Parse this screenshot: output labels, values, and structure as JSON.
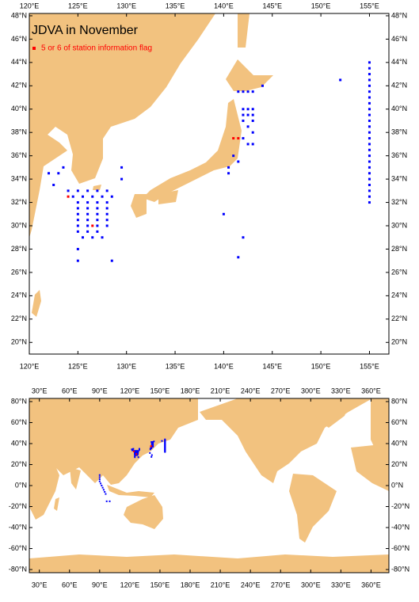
{
  "title": "JDVA in November",
  "legend": "5 or 6 of station information flag",
  "maps": [
    {
      "xlim": [
        120,
        157
      ],
      "ylim": [
        19,
        48.2
      ],
      "xticks": [
        {
          "value": 120,
          "label": "120°E"
        },
        {
          "value": 125,
          "label": "125°E"
        },
        {
          "value": 130,
          "label": "130°E"
        },
        {
          "value": 135,
          "label": "135°E"
        },
        {
          "value": 140,
          "label": "140°E"
        },
        {
          "value": 145,
          "label": "145°E"
        },
        {
          "value": 150,
          "label": "150°E"
        },
        {
          "value": 155,
          "label": "155°E"
        }
      ],
      "yticks": [
        {
          "value": 20,
          "label": "20°N"
        },
        {
          "value": 22,
          "label": "22°N"
        },
        {
          "value": 24,
          "label": "24°N"
        },
        {
          "value": 26,
          "label": "26°N"
        },
        {
          "value": 28,
          "label": "28°N"
        },
        {
          "value": 30,
          "label": "30°N"
        },
        {
          "value": 32,
          "label": "32°N"
        },
        {
          "value": 34,
          "label": "34°N"
        },
        {
          "value": 36,
          "label": "36°N"
        },
        {
          "value": 38,
          "label": "38°N"
        },
        {
          "value": 40,
          "label": "40°N"
        },
        {
          "value": 42,
          "label": "42°N"
        },
        {
          "value": 44,
          "label": "44°N"
        },
        {
          "value": 46,
          "label": "46°N"
        },
        {
          "value": 48,
          "label": "48°N"
        }
      ]
    },
    {
      "xlim": [
        20,
        377.8
      ],
      "ylim": [
        -83,
        83
      ],
      "xticks": [
        {
          "value": 30,
          "label": "30°E"
        },
        {
          "value": 60,
          "label": "60°E"
        },
        {
          "value": 90,
          "label": "90°E"
        },
        {
          "value": 120,
          "label": "120°E"
        },
        {
          "value": 150,
          "label": "150°E"
        },
        {
          "value": 180,
          "label": "180°E"
        },
        {
          "value": 210,
          "label": "210°E"
        },
        {
          "value": 240,
          "label": "240°E"
        },
        {
          "value": 270,
          "label": "270°E"
        },
        {
          "value": 300,
          "label": "300°E"
        },
        {
          "value": 330,
          "label": "330°E"
        },
        {
          "value": 360,
          "label": "360°E"
        }
      ],
      "yticks": [
        {
          "value": -80,
          "label": "-80°N"
        },
        {
          "value": -60,
          "label": "-60°N"
        },
        {
          "value": -40,
          "label": "-40°N"
        },
        {
          "value": -20,
          "label": "-20°N"
        },
        {
          "value": 0,
          "label": "0°N"
        },
        {
          "value": 20,
          "label": "20°N"
        },
        {
          "value": 40,
          "label": "40°N"
        },
        {
          "value": 60,
          "label": "60°N"
        },
        {
          "value": 80,
          "label": "80°N"
        }
      ]
    }
  ],
  "station_color": "#0000ff",
  "flag_color": "#ff0000",
  "stations": [
    [
      124,
      33
    ],
    [
      125,
      33
    ],
    [
      126,
      33
    ],
    [
      127,
      33
    ],
    [
      128,
      33
    ],
    [
      124.5,
      32.5
    ],
    [
      125.5,
      32.5
    ],
    [
      126.5,
      32.5
    ],
    [
      127.5,
      32.5
    ],
    [
      128.5,
      32.5
    ],
    [
      125,
      32
    ],
    [
      126,
      32
    ],
    [
      127,
      32
    ],
    [
      128,
      32
    ],
    [
      125,
      31.5
    ],
    [
      126,
      31.5
    ],
    [
      127,
      31.5
    ],
    [
      128,
      31.5
    ],
    [
      125,
      31
    ],
    [
      126,
      31
    ],
    [
      127,
      31
    ],
    [
      128,
      31
    ],
    [
      125,
      30.5
    ],
    [
      126,
      30.5
    ],
    [
      127,
      30.5
    ],
    [
      128,
      30.5
    ],
    [
      125,
      30
    ],
    [
      126,
      30
    ],
    [
      127,
      30
    ],
    [
      128,
      30
    ],
    [
      125,
      29.5
    ],
    [
      126,
      29.5
    ],
    [
      127,
      29.5
    ],
    [
      125.5,
      29
    ],
    [
      126.5,
      29
    ],
    [
      127.5,
      29
    ],
    [
      125,
      28
    ],
    [
      125,
      27
    ],
    [
      122,
      34.5
    ],
    [
      123,
      34.5
    ],
    [
      123.5,
      35
    ],
    [
      122.5,
      33.5
    ],
    [
      129.5,
      35
    ],
    [
      129.5,
      34
    ],
    [
      128.5,
      27
    ],
    [
      155,
      32
    ],
    [
      155,
      32.5
    ],
    [
      155,
      33
    ],
    [
      155,
      33.5
    ],
    [
      155,
      34
    ],
    [
      155,
      34.5
    ],
    [
      155,
      35
    ],
    [
      155,
      35.5
    ],
    [
      155,
      36
    ],
    [
      155,
      36.5
    ],
    [
      155,
      37
    ],
    [
      155,
      37.5
    ],
    [
      155,
      38
    ],
    [
      155,
      38.5
    ],
    [
      155,
      39
    ],
    [
      155,
      39.5
    ],
    [
      155,
      40
    ],
    [
      155,
      40.5
    ],
    [
      155,
      41
    ],
    [
      155,
      41.5
    ],
    [
      155,
      42
    ],
    [
      155,
      42.5
    ],
    [
      155,
      43
    ],
    [
      155,
      43.5
    ],
    [
      155,
      44
    ],
    [
      141.5,
      41.5
    ],
    [
      142,
      41.5
    ],
    [
      142.5,
      41.5
    ],
    [
      143,
      41.5
    ],
    [
      144,
      42
    ],
    [
      142,
      40
    ],
    [
      142.5,
      40
    ],
    [
      143,
      40
    ],
    [
      142,
      39.5
    ],
    [
      142.5,
      39.5
    ],
    [
      143,
      39.5
    ],
    [
      142,
      39
    ],
    [
      143,
      39
    ],
    [
      142.5,
      38.5
    ],
    [
      143,
      38
    ],
    [
      142,
      37.5
    ],
    [
      142.5,
      37
    ],
    [
      143,
      37
    ],
    [
      141,
      36
    ],
    [
      141.5,
      35.5
    ],
    [
      140.5,
      35
    ],
    [
      140.5,
      34.5
    ],
    [
      140,
      31
    ],
    [
      141.5,
      27.3
    ],
    [
      152,
      42.5
    ],
    [
      142,
      29
    ],
    [
      90,
      10
    ],
    [
      90,
      8
    ],
    [
      90,
      6
    ],
    [
      90,
      4
    ],
    [
      91,
      2
    ],
    [
      92,
      0
    ],
    [
      93,
      -2
    ],
    [
      94,
      -4
    ],
    [
      95,
      -6
    ],
    [
      96,
      -8
    ],
    [
      97,
      -15
    ],
    [
      100,
      -15
    ]
  ],
  "flagged": [
    [
      141,
      37.5
    ],
    [
      141.5,
      37.5
    ],
    [
      126.5,
      30
    ],
    [
      124,
      32.5
    ]
  ]
}
